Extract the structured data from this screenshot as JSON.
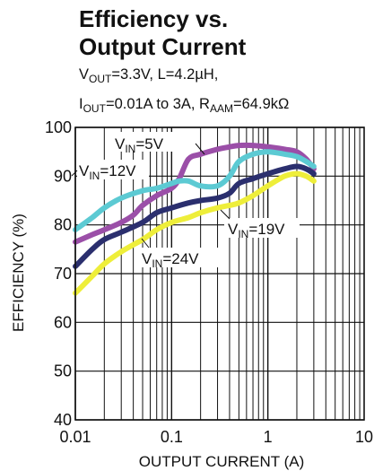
{
  "chart_data": {
    "type": "line",
    "title_lines": [
      "Efficiency vs.",
      "Output Current"
    ],
    "conditions": {
      "line1": {
        "vout_main": "V",
        "vout_sub": "OUT",
        "vout_rest": "=3.3V, L=4.2µH,"
      },
      "line2": {
        "iout_main": "I",
        "iout_sub": "OUT",
        "iout_rest": "=0.01A to 3A, R",
        "raam_sub": "AAM",
        "raam_rest": "=64.9kΩ"
      }
    },
    "xlabel": "OUTPUT CURRENT (A)",
    "ylabel": "EFFICIENCY (%)",
    "x_scale": "log",
    "xlim": [
      0.01,
      10
    ],
    "ylim": [
      40,
      100
    ],
    "x_ticks": [
      0.01,
      0.1,
      1,
      10
    ],
    "x_tick_labels": [
      "0.01",
      "0.1",
      "1",
      "10"
    ],
    "y_ticks": [
      40,
      50,
      60,
      70,
      80,
      90,
      100
    ],
    "y_tick_labels": [
      "40",
      "50",
      "60",
      "70",
      "80",
      "90",
      "100"
    ],
    "grid": true,
    "series": [
      {
        "name_main": "V",
        "name_sub": "IN",
        "name_rest": "=5V",
        "color": "#9b4fa8",
        "x": [
          0.01,
          0.015,
          0.02,
          0.03,
          0.04,
          0.05,
          0.07,
          0.1,
          0.12,
          0.15,
          0.2,
          0.3,
          0.4,
          0.5,
          0.7,
          1,
          1.5,
          2,
          2.5,
          3
        ],
        "y": [
          76.5,
          78,
          79,
          80.5,
          82,
          84,
          86,
          87.5,
          89.5,
          93.5,
          94.5,
          95.5,
          96,
          96.3,
          96.3,
          96,
          95.5,
          95,
          93.5,
          91.5
        ]
      },
      {
        "name_main": "V",
        "name_sub": "IN",
        "name_rest": "=12V",
        "color": "#5ccad3",
        "x": [
          0.01,
          0.015,
          0.02,
          0.03,
          0.05,
          0.07,
          0.1,
          0.12,
          0.15,
          0.2,
          0.3,
          0.4,
          0.5,
          0.7,
          1,
          1.5,
          2,
          2.5,
          3
        ],
        "y": [
          79,
          81.5,
          83.5,
          85.5,
          87,
          87.5,
          88.5,
          89,
          89,
          88,
          88,
          90,
          93,
          94.5,
          95,
          94.5,
          94,
          93,
          92
        ]
      },
      {
        "name_main": "V",
        "name_sub": "IN",
        "name_rest": "=19V",
        "color": "#2b2f6e",
        "x": [
          0.01,
          0.015,
          0.02,
          0.03,
          0.05,
          0.07,
          0.1,
          0.15,
          0.2,
          0.3,
          0.4,
          0.5,
          0.7,
          1,
          1.5,
          2,
          2.5,
          3
        ],
        "y": [
          71.5,
          75,
          77,
          78.5,
          80.5,
          82.5,
          83.5,
          84.5,
          85,
          85.5,
          86.5,
          88.5,
          89.5,
          90.5,
          91.5,
          92,
          91.5,
          90.5
        ]
      },
      {
        "name_main": "V",
        "name_sub": "IN",
        "name_rest": "=24V",
        "color": "#eeee3a",
        "x": [
          0.01,
          0.015,
          0.02,
          0.03,
          0.05,
          0.07,
          0.1,
          0.15,
          0.2,
          0.3,
          0.4,
          0.5,
          0.7,
          1,
          1.5,
          2,
          2.5,
          3
        ],
        "y": [
          66,
          69.5,
          72,
          74.5,
          77,
          79,
          80.5,
          81.5,
          82.5,
          83.5,
          84,
          84.5,
          86,
          88,
          90,
          90.5,
          90,
          89
        ]
      }
    ]
  }
}
